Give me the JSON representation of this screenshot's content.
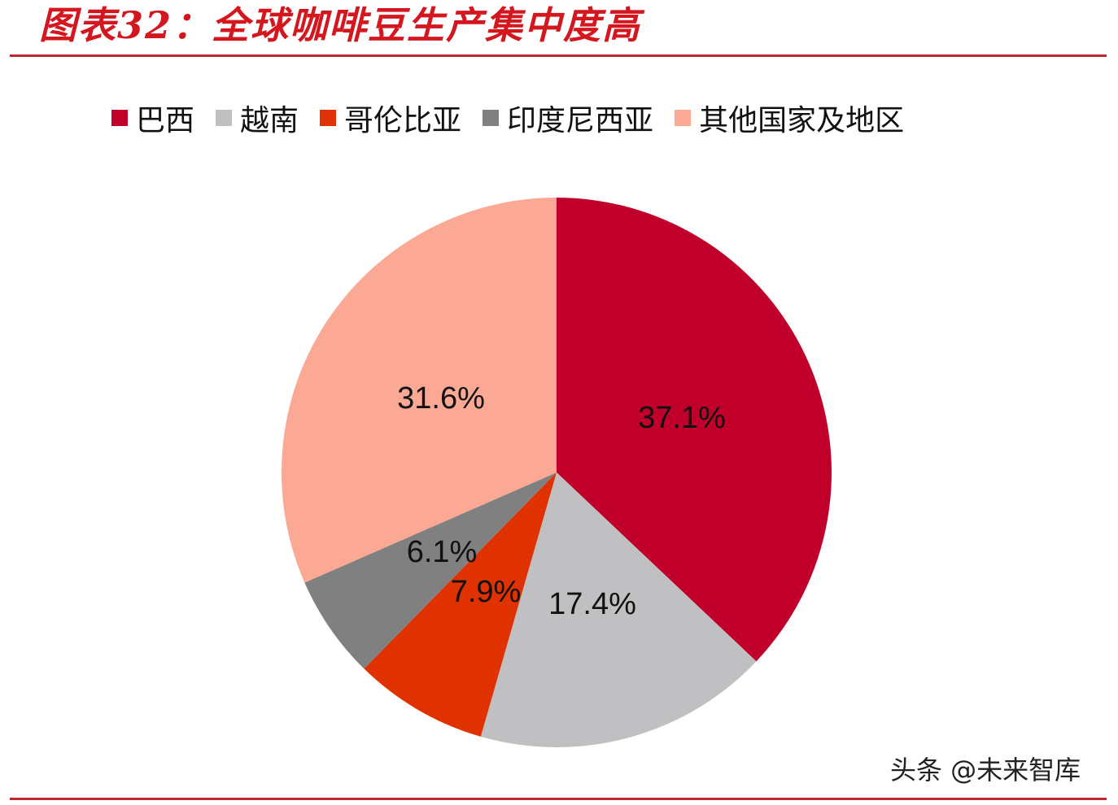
{
  "header": {
    "title": "图表32：全球咖啡豆生产集中度高"
  },
  "watermark": "头条 @未来智库",
  "chart_data": {
    "type": "pie",
    "title": "图表32：全球咖啡豆生产集中度高",
    "categories": [
      "巴西",
      "越南",
      "哥伦比亚",
      "印度尼西亚",
      "其他国家及地区"
    ],
    "values": [
      37.1,
      17.4,
      7.9,
      6.1,
      31.6
    ],
    "labels": [
      "37.1%",
      "17.4%",
      "7.9%",
      "6.1%",
      "31.6%"
    ],
    "colors": [
      "#c0002b",
      "#c0bfc1",
      "#e03200",
      "#808080",
      "#fba894"
    ],
    "start_angle_deg": 0,
    "direction": "clockwise",
    "legend_position": "top"
  },
  "legend": {
    "items": [
      {
        "label": "巴西",
        "color": "#c0002b"
      },
      {
        "label": "越南",
        "color": "#c0bfc1"
      },
      {
        "label": "哥伦比亚",
        "color": "#e03200"
      },
      {
        "label": "印度尼西亚",
        "color": "#808080"
      },
      {
        "label": "其他国家及地区",
        "color": "#fba894"
      }
    ]
  }
}
